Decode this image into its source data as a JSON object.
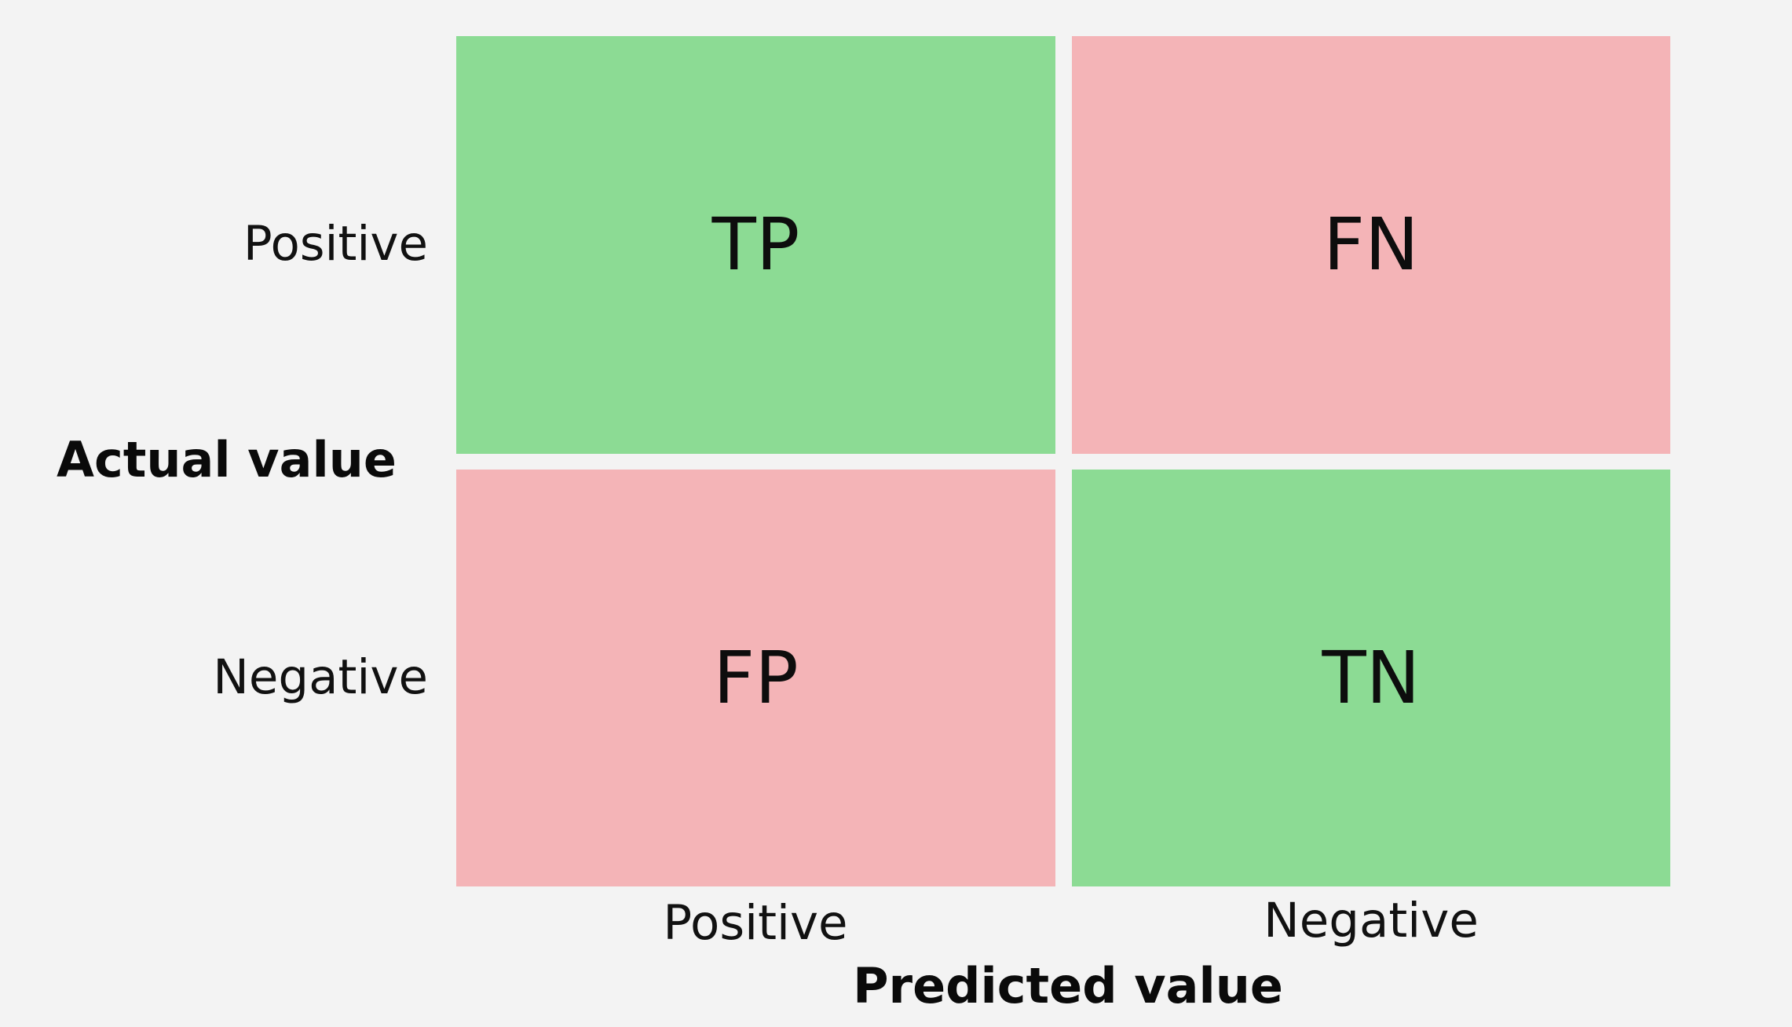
{
  "matrix": {
    "cells": {
      "tp": "TP",
      "fn": "FN",
      "fp": "FP",
      "tn": "TN"
    },
    "row_labels": {
      "positive": "Positive",
      "negative": "Negative"
    },
    "column_labels": {
      "positive": "Positive",
      "negative": "Negative"
    },
    "y_axis_title": "Actual value",
    "x_axis_title": "Predicted value"
  },
  "colors": {
    "correct": "#8cdb94",
    "incorrect": "#f4b4b7",
    "background": "#f3f3f3"
  }
}
